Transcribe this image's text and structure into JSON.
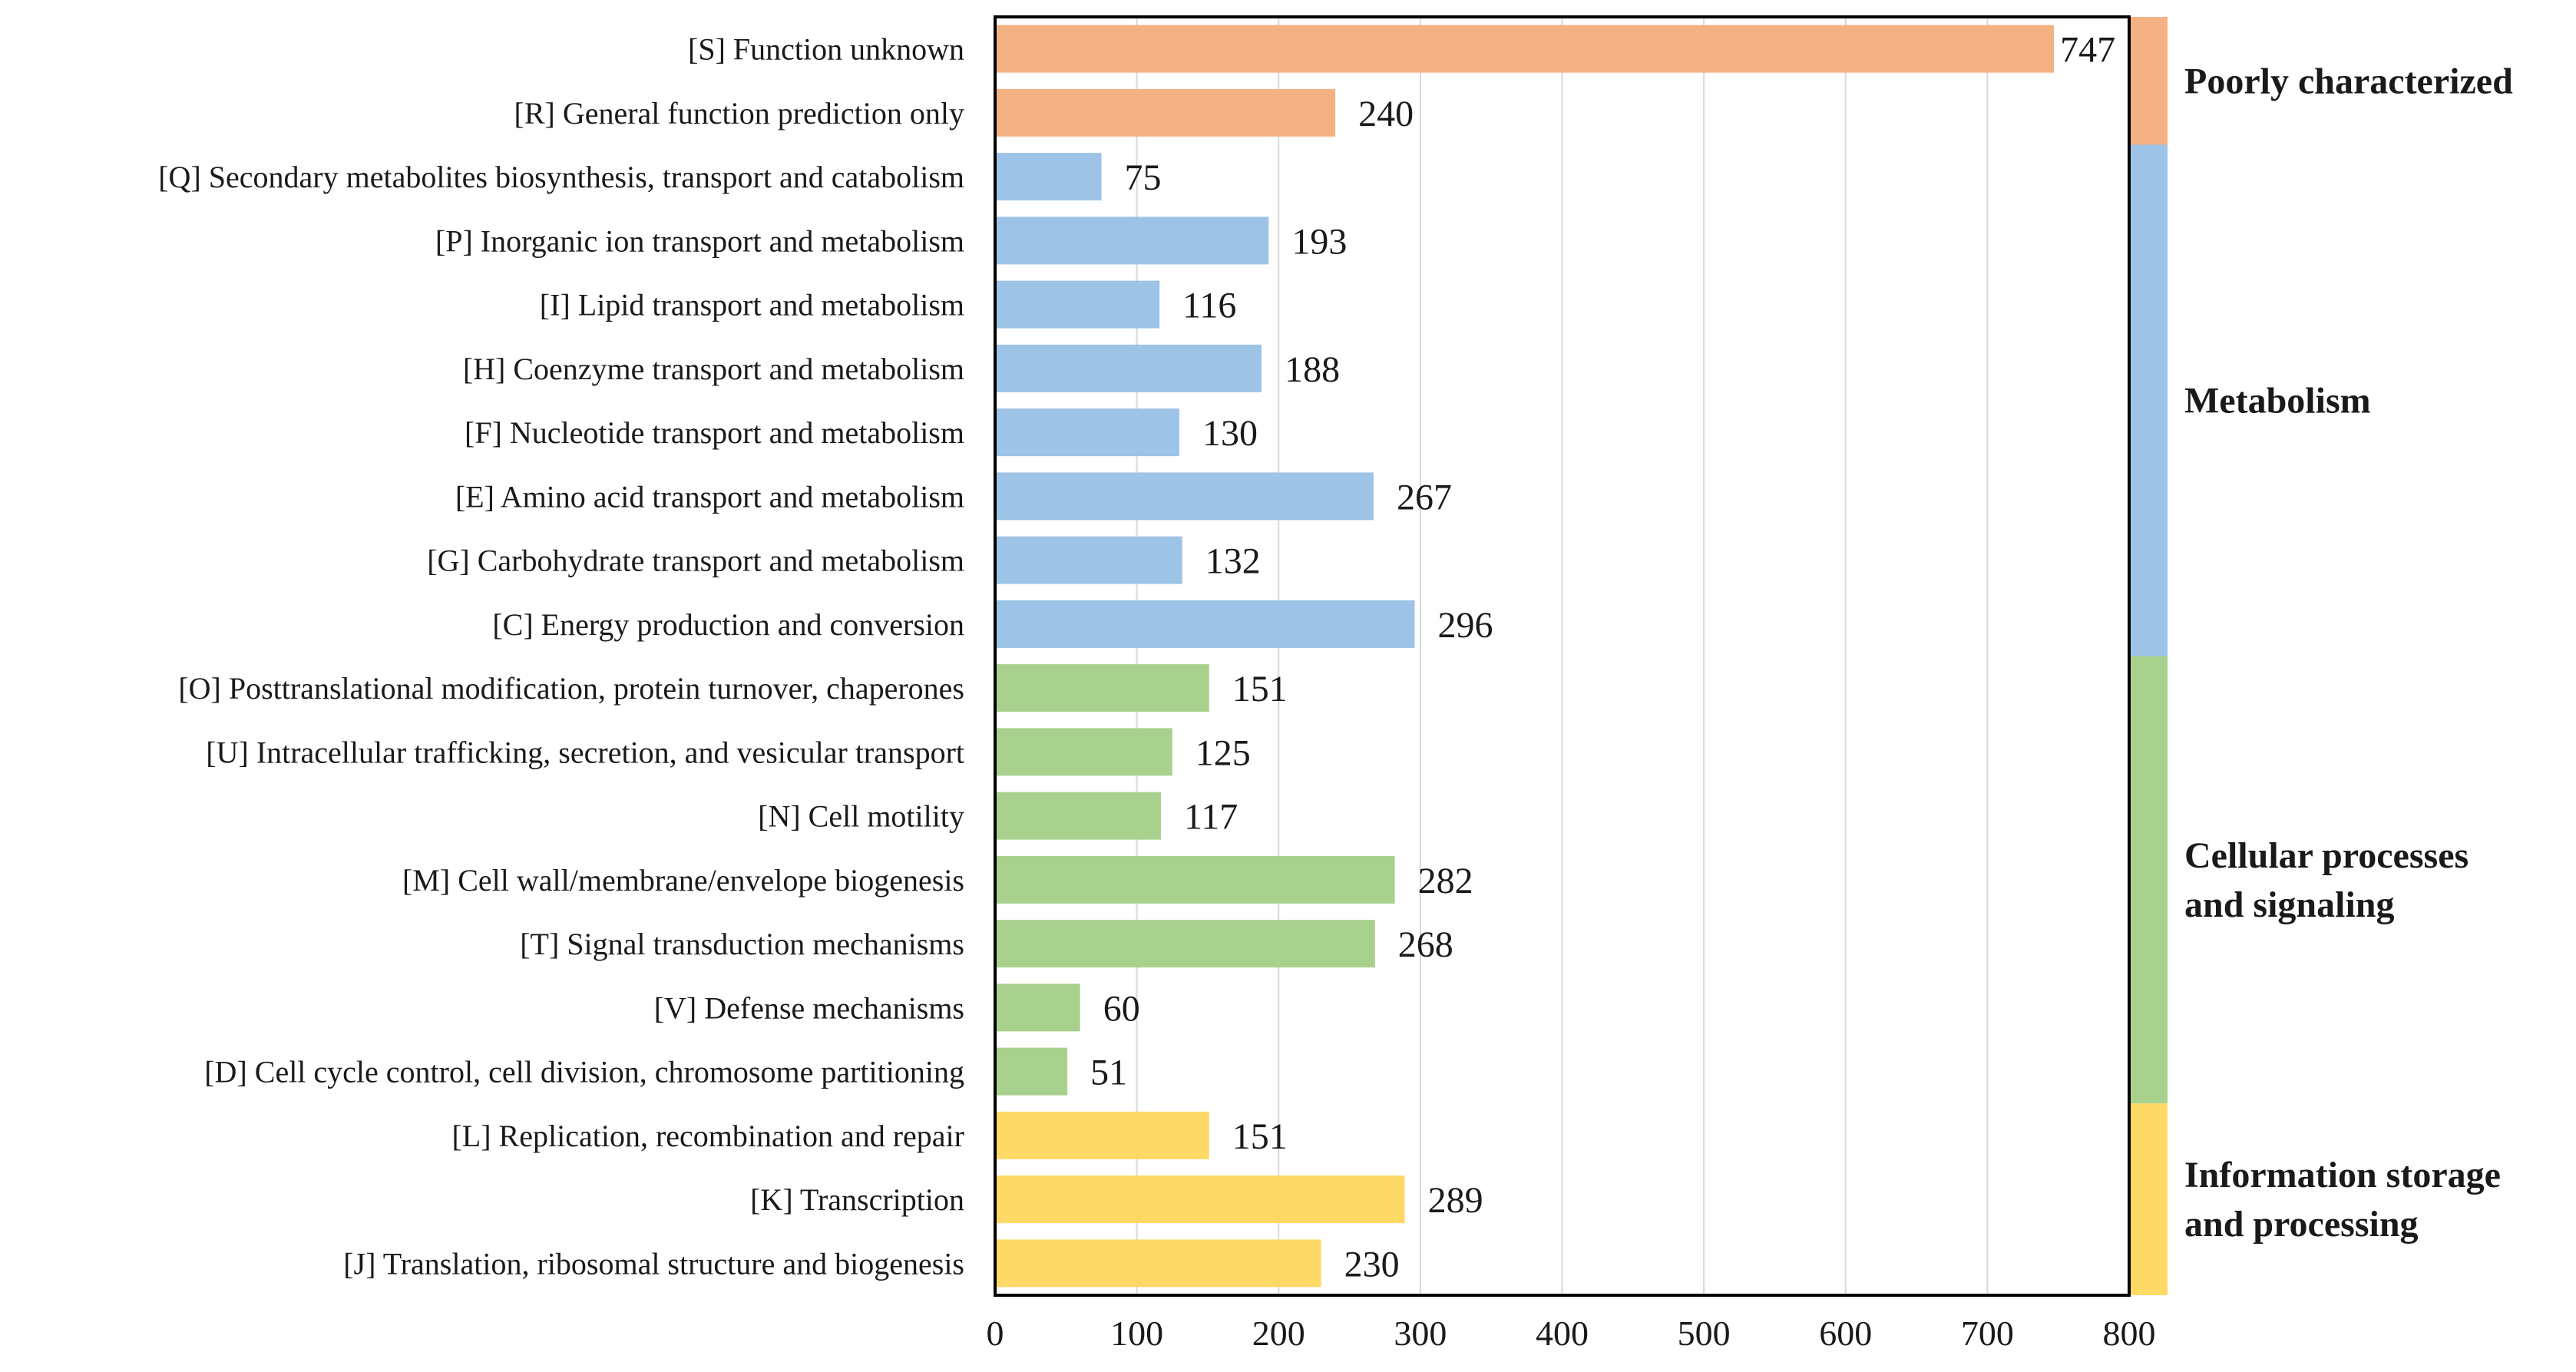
{
  "chart_data": {
    "type": "bar",
    "orientation": "horizontal",
    "xlim": [
      0,
      800
    ],
    "x_ticks": [
      0,
      100,
      200,
      300,
      400,
      500,
      600,
      700,
      800
    ],
    "grid": "vertical",
    "categories": [
      "[S] Function unknown",
      "[R] General function prediction only",
      "[Q] Secondary metabolites biosynthesis, transport and catabolism",
      "[P] Inorganic ion transport and metabolism",
      "[I] Lipid transport and metabolism",
      "[H] Coenzyme transport and metabolism",
      "[F] Nucleotide transport and metabolism",
      "[E] Amino acid transport and metabolism",
      "[G] Carbohydrate transport and metabolism",
      "[C] Energy production and conversion",
      "[O] Posttranslational modification, protein turnover, chaperones",
      "[U] Intracellular trafficking, secretion, and vesicular transport",
      "[N] Cell motility",
      "[M] Cell wall/membrane/envelope biogenesis",
      "[T] Signal transduction mechanisms",
      "[V] Defense mechanisms",
      "[D] Cell cycle control, cell division, chromosome partitioning",
      "[L] Replication, recombination and repair",
      "[K] Transcription",
      "[J] Translation, ribosomal structure and biogenesis"
    ],
    "values": [
      747,
      240,
      75,
      193,
      116,
      188,
      130,
      267,
      132,
      296,
      151,
      125,
      117,
      282,
      268,
      60,
      51,
      151,
      289,
      230
    ],
    "groups": [
      {
        "lines": [
          "Poorly characterized"
        ],
        "color": "#F4B183",
        "start": 0,
        "count": 2
      },
      {
        "lines": [
          "Metabolism"
        ],
        "color": "#9DC3E6",
        "start": 2,
        "count": 8
      },
      {
        "lines": [
          "Cellular  processes",
          "and  signaling"
        ],
        "color": "#A9D18E",
        "start": 10,
        "count": 7
      },
      {
        "lines": [
          "Information storage",
          "and processing"
        ],
        "color": "#FFD966",
        "start": 17,
        "count": 3
      }
    ]
  }
}
